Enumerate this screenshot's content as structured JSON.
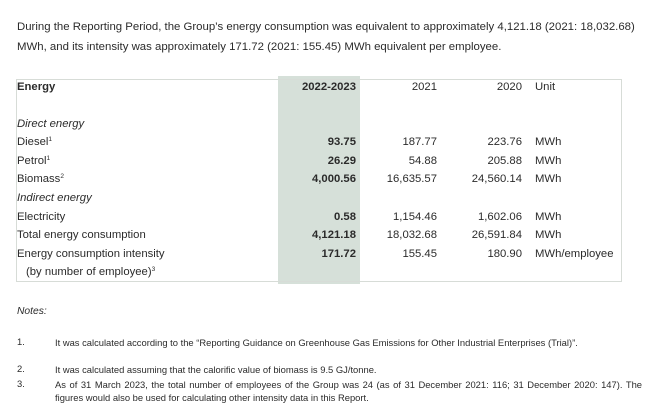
{
  "intro": "During the Reporting Period, the Group’s energy consumption was equivalent to approximately 4,121.18 (2021: 18,032.68) MWh, and its intensity was approximately 171.72 (2021: 155.45) MWh equivalent per employee.",
  "colors": {
    "highlight": "#d6e0d9",
    "border": "#d7dcd7",
    "text": "#2b2b2b"
  },
  "table": {
    "headers": {
      "energy": "Energy",
      "y2023": "2022-2023",
      "y2021": "2021",
      "y2020": "2020",
      "unit": "Unit"
    },
    "direct_label": "Direct energy",
    "indirect_label": "Indirect energy",
    "rows": [
      {
        "label": "Diesel",
        "sup": "1",
        "v2023": "93.75",
        "v2021": "187.77",
        "v2020": "223.76",
        "unit": "MWh"
      },
      {
        "label": "Petrol",
        "sup": "1",
        "v2023": "26.29",
        "v2021": "54.88",
        "v2020": "205.88",
        "unit": "MWh"
      },
      {
        "label": "Biomass",
        "sup": "2",
        "v2023": "4,000.56",
        "v2021": "16,635.57",
        "v2020": "24,560.14",
        "unit": "MWh"
      },
      {
        "label": "Electricity",
        "sup": "",
        "v2023": "0.58",
        "v2021": "1,154.46",
        "v2020": "1,602.06",
        "unit": "MWh"
      },
      {
        "label": "Total energy consumption",
        "sup": "",
        "v2023": "4,121.18",
        "v2021": "18,032.68",
        "v2020": "26,591.84",
        "unit": "MWh"
      },
      {
        "label": "Energy consumption intensity",
        "sup": "",
        "v2023": "171.72",
        "v2021": "155.45",
        "v2020": "180.90",
        "unit": "MWh/employee"
      }
    ],
    "intensity_sub": "(by number of employee)",
    "intensity_sub_sup": "3"
  },
  "notes": {
    "title": "Notes:",
    "items": [
      {
        "num": "1.",
        "text": "It was calculated according to the “Reporting Guidance on Greenhouse Gas Emissions for Other Industrial Enterprises (Trial)”."
      },
      {
        "num": "2.",
        "text": "It was calculated assuming that the calorific value of biomass is 9.5 GJ/tonne."
      },
      {
        "num": "3.",
        "text": "As of 31 March 2023, the total number of employees of the Group was 24 (as of 31 December 2021: 116; 31 December 2020: 147). The figures would also be used for calculating other intensity data in this Report."
      }
    ]
  }
}
